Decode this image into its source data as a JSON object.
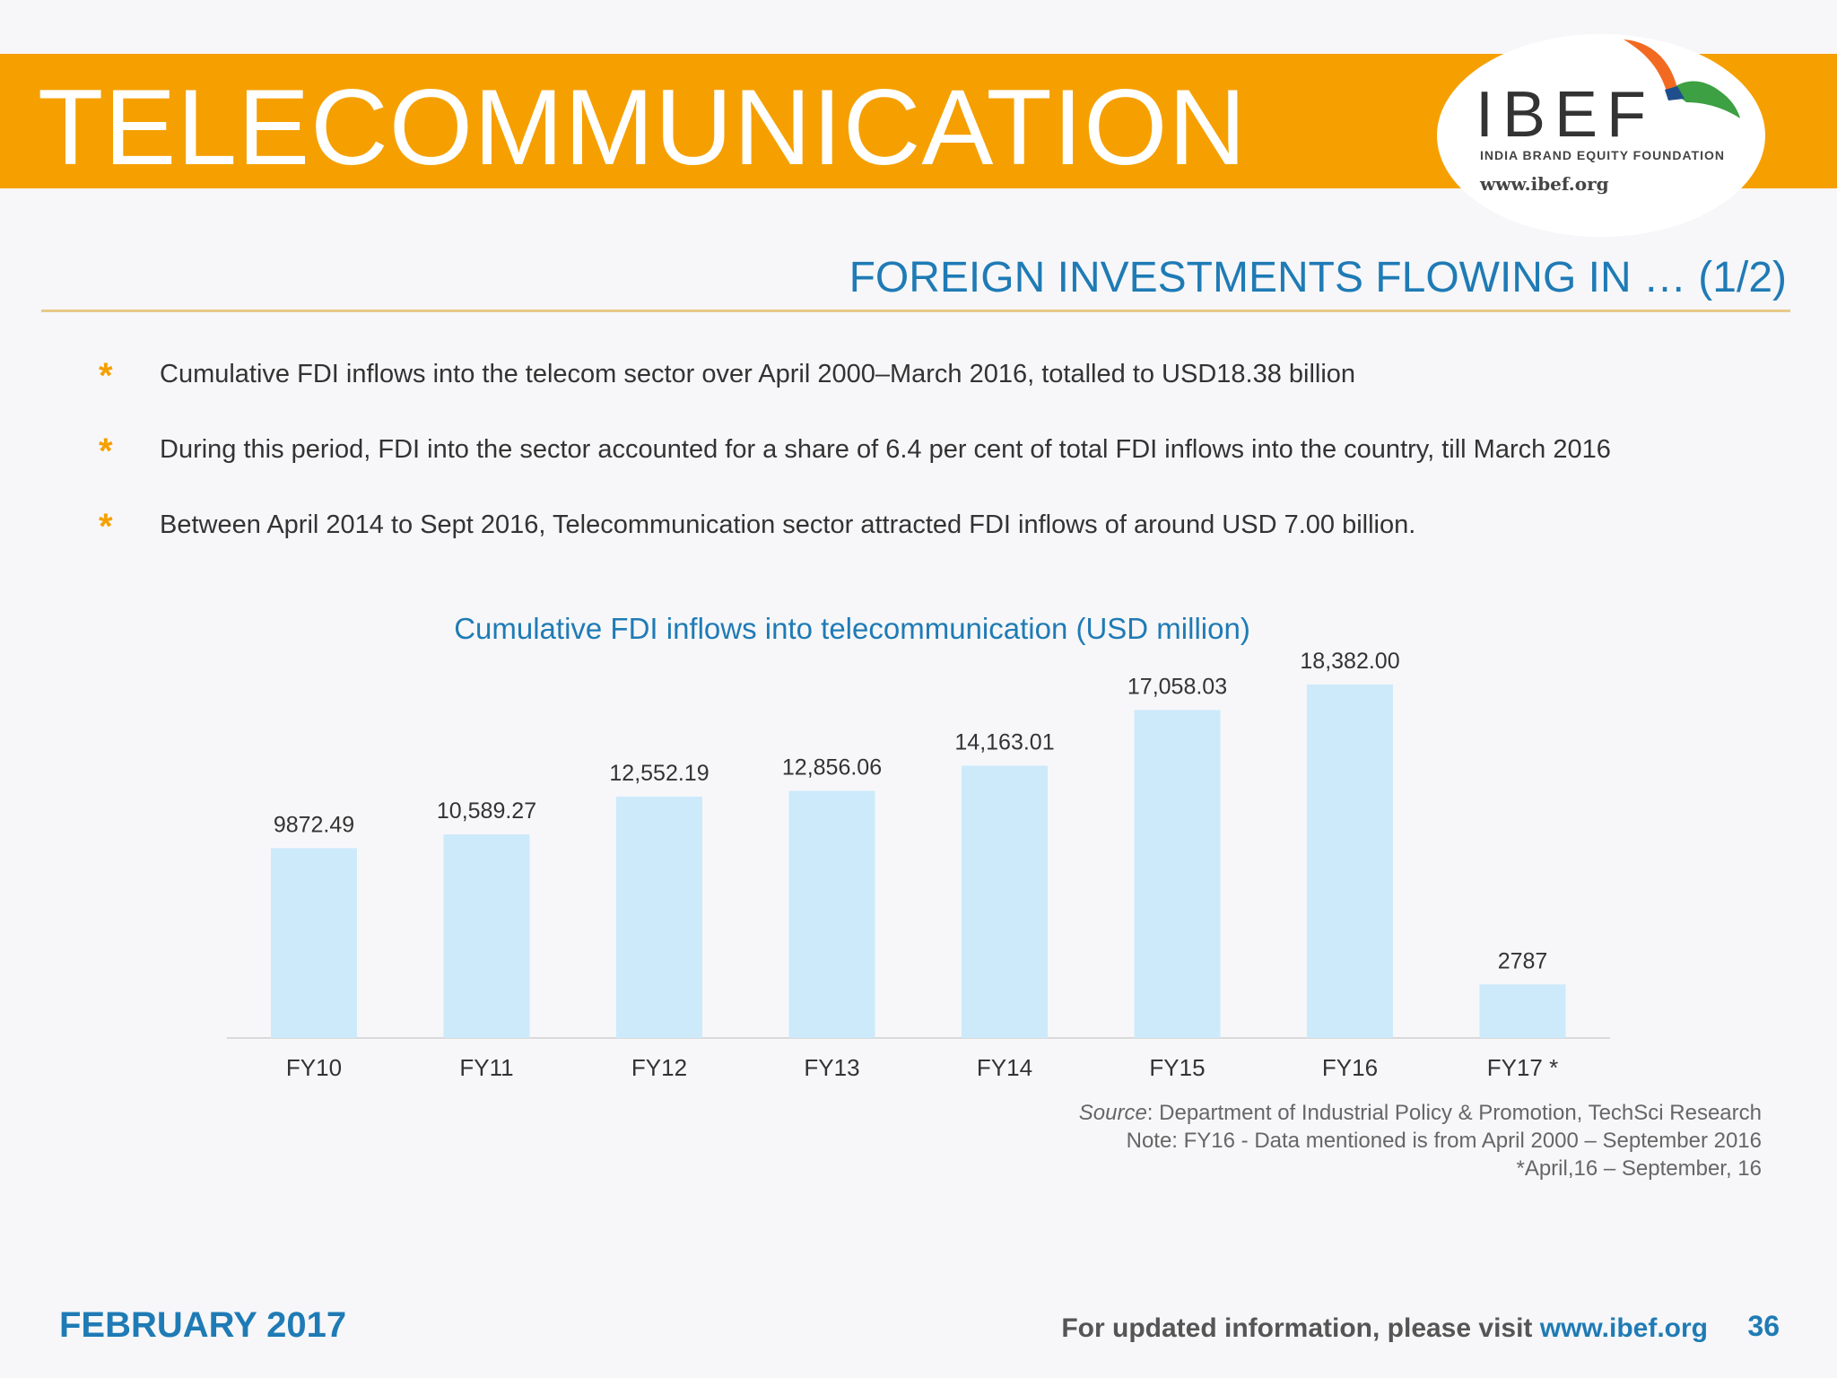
{
  "header": {
    "title": "TELECOMMUNICATION",
    "logo_text": "IBEF",
    "logo_subtitle": "INDIA BRAND EQUITY FOUNDATION",
    "logo_url": "www.ibef.org"
  },
  "section_title": "FOREIGN INVESTMENTS FLOWING IN … (1/2)",
  "bullets": [
    "Cumulative FDI inflows into the telecom sector over April 2000–March 2016, totalled to USD18.38 billion",
    "During this period, FDI into the sector accounted for a share of 6.4 per cent of total FDI inflows into the country, till March 2016",
    "Between April 2014 to Sept 2016, Telecommunication sector attracted FDI inflows of around USD 7.00 billion."
  ],
  "chart_data": {
    "type": "bar",
    "title": "Cumulative FDI inflows into telecommunication (USD million)",
    "categories": [
      "FY10",
      "FY11",
      "FY12",
      "FY13",
      "FY14",
      "FY15",
      "FY16",
      "FY17 *"
    ],
    "values": [
      9872.49,
      10589.27,
      12552.19,
      12856.06,
      14163.01,
      17058.03,
      18382.0,
      2787
    ],
    "data_labels": [
      "9872.49",
      "10,589.27",
      "12,552.19",
      "12,856.06",
      "14,163.01",
      "17,058.03",
      "18,382.00",
      "2787"
    ],
    "xlabel": "",
    "ylabel": "",
    "ylim": [
      0,
      18382
    ],
    "grid": false,
    "legend": "none",
    "bar_color": "#cdeafb"
  },
  "source": {
    "label": "Source",
    "text": ": Department of Industrial Policy & Promotion, TechSci Research",
    "note": "Note: FY16 - Data mentioned is from April 2000 – September 2016",
    "footnote": "*April,16 – September, 16"
  },
  "footer": {
    "date": "FEBRUARY 2017",
    "visit_text": "For updated information, please visit ",
    "visit_link": "www.ibef.org",
    "page_number": "36"
  },
  "colors": {
    "accent_orange": "#f5a000",
    "accent_blue": "#1f7bb5"
  }
}
